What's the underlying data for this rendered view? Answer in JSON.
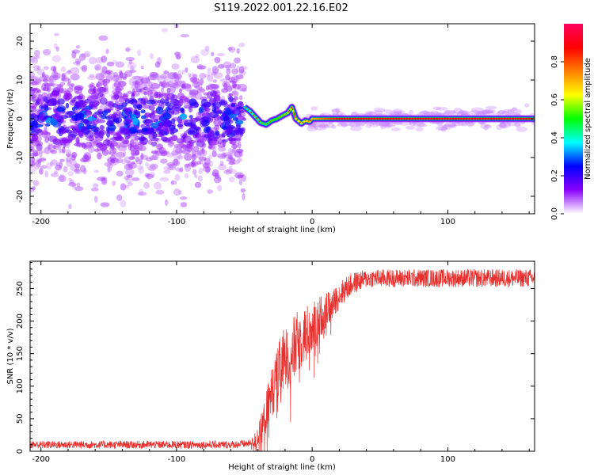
{
  "title": "S119.2022.001.22.16.E02",
  "chart_data": [
    {
      "type": "heatmap",
      "xlabel": "Height of straight line (km)",
      "ylabel": "Frequency (Hz)",
      "xlim": [
        -208,
        164
      ],
      "ylim": [
        -24.5,
        24.5
      ],
      "xticks": [
        -200,
        -100,
        0,
        100
      ],
      "yticks": [
        -20,
        -10,
        0,
        10,
        20
      ],
      "colorbar": {
        "label": "Normalized spectral amplitude",
        "range": [
          0,
          1
        ],
        "ticks": [
          "0.0",
          "0.2",
          "0.4",
          "0.6",
          "0.8"
        ],
        "colors": [
          "#ffffff",
          "#8a00ff",
          "#0000ff",
          "#00ffff",
          "#00ff00",
          "#ffff00",
          "#ff7f00",
          "#ff0000",
          "#ff0060"
        ]
      },
      "noise_region": {
        "x_range": [
          -208,
          -50
        ],
        "frequency_spread": 24,
        "amplitude": [
          0.05,
          0.35
        ]
      },
      "signal_track": [
        {
          "x": -50,
          "y": 3.0
        },
        {
          "x": -46,
          "y": 2.0
        },
        {
          "x": -42,
          "y": 0.5
        },
        {
          "x": -38,
          "y": -1.0
        },
        {
          "x": -34,
          "y": -1.5
        },
        {
          "x": -30,
          "y": -0.5
        },
        {
          "x": -26,
          "y": 0.0
        },
        {
          "x": -22,
          "y": 0.8
        },
        {
          "x": -18,
          "y": 1.5
        },
        {
          "x": -15,
          "y": 3.0
        },
        {
          "x": -12,
          "y": 0.0
        },
        {
          "x": -8,
          "y": -1.2
        },
        {
          "x": -5,
          "y": -0.5
        },
        {
          "x": -2,
          "y": -0.8
        },
        {
          "x": 0,
          "y": 0.0
        },
        {
          "x": 50,
          "y": 0.0
        },
        {
          "x": 100,
          "y": 0.0
        },
        {
          "x": 164,
          "y": 0.0
        }
      ],
      "signal_amplitude": [
        {
          "x": -50,
          "v": 0.35
        },
        {
          "x": -20,
          "v": 0.55
        },
        {
          "x": 0,
          "v": 0.7
        },
        {
          "x": 20,
          "v": 0.88
        },
        {
          "x": 164,
          "v": 0.9
        }
      ]
    },
    {
      "type": "line",
      "xlabel": "Height of straight line (km)",
      "ylabel": "SNR (10 * v/v)",
      "xlim": [
        -208,
        164
      ],
      "ylim": [
        0,
        292
      ],
      "xticks": [
        -200,
        -100,
        0,
        100
      ],
      "yticks": [
        0,
        50,
        100,
        150,
        200,
        250
      ],
      "color": "#e8312e",
      "series": [
        {
          "x": [
            -208,
            -60,
            -45,
            -40,
            -35,
            -30,
            -25,
            -20,
            -15,
            -10,
            -5,
            0,
            5,
            10,
            15,
            20,
            25,
            30,
            35,
            40,
            45,
            50,
            60,
            80,
            100,
            120,
            140,
            164
          ],
          "values": [
            10,
            10,
            12,
            20,
            50,
            90,
            120,
            140,
            150,
            170,
            180,
            190,
            205,
            215,
            225,
            240,
            250,
            258,
            262,
            265,
            266,
            266,
            266,
            266,
            266,
            266,
            266,
            266
          ]
        }
      ],
      "noise_amplitude": [
        {
          "x": -208,
          "a": 6
        },
        {
          "x": -45,
          "a": 6
        },
        {
          "x": -35,
          "a": 30
        },
        {
          "x": -20,
          "a": 55
        },
        {
          "x": -5,
          "a": 45
        },
        {
          "x": 15,
          "a": 22
        },
        {
          "x": 40,
          "a": 14
        },
        {
          "x": 164,
          "a": 14
        }
      ]
    }
  ]
}
